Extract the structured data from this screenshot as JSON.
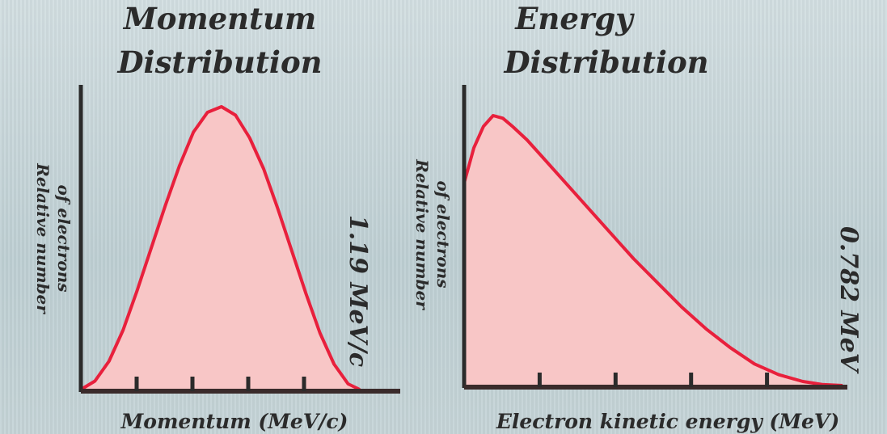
{
  "chart_data": [
    {
      "type": "area",
      "title": [
        "Momentum",
        "Distribution"
      ],
      "xlabel": "Momentum (MeV/c)",
      "ylabel": [
        "Relative number",
        "of electrons"
      ],
      "endpoint_label": "1.19 MeV/c",
      "xlim": [
        0,
        1.19
      ],
      "ylim": [
        0,
        1
      ],
      "x": [
        0,
        0.06,
        0.12,
        0.18,
        0.24,
        0.3,
        0.36,
        0.42,
        0.48,
        0.54,
        0.6,
        0.66,
        0.72,
        0.78,
        0.84,
        0.9,
        0.96,
        1.02,
        1.08,
        1.14,
        1.19
      ],
      "values": [
        0,
        0.03,
        0.1,
        0.21,
        0.35,
        0.5,
        0.65,
        0.79,
        0.91,
        0.98,
        1.0,
        0.97,
        0.89,
        0.78,
        0.64,
        0.49,
        0.34,
        0.2,
        0.09,
        0.02,
        0
      ],
      "ticks": [
        0.238,
        0.476,
        0.714,
        0.952
      ],
      "grid": false,
      "colors": {
        "line": "#e8203c",
        "fill": "#f8c6c6",
        "axis": "#2b2b2b"
      }
    },
    {
      "type": "area",
      "title": [
        "Energy",
        "Distribution"
      ],
      "xlabel": "Electron kinetic energy (MeV)",
      "ylabel": [
        "Relative number",
        "of electrons"
      ],
      "endpoint_label": "0.782 MeV",
      "xlim": [
        0,
        0.782
      ],
      "ylim": [
        0,
        1
      ],
      "x": [
        0,
        0.02,
        0.04,
        0.06,
        0.08,
        0.1,
        0.13,
        0.16,
        0.2,
        0.25,
        0.3,
        0.35,
        0.4,
        0.45,
        0.5,
        0.55,
        0.6,
        0.65,
        0.7,
        0.74,
        0.782
      ],
      "values": [
        0.75,
        0.88,
        0.96,
        1.0,
        0.99,
        0.96,
        0.91,
        0.85,
        0.77,
        0.67,
        0.57,
        0.47,
        0.38,
        0.29,
        0.21,
        0.14,
        0.08,
        0.04,
        0.015,
        0.004,
        0
      ],
      "ticks": [
        0.156,
        0.313,
        0.469,
        0.626
      ],
      "grid": false,
      "colors": {
        "line": "#e8203c",
        "fill": "#f8c6c6",
        "axis": "#2b2b2b"
      }
    }
  ]
}
